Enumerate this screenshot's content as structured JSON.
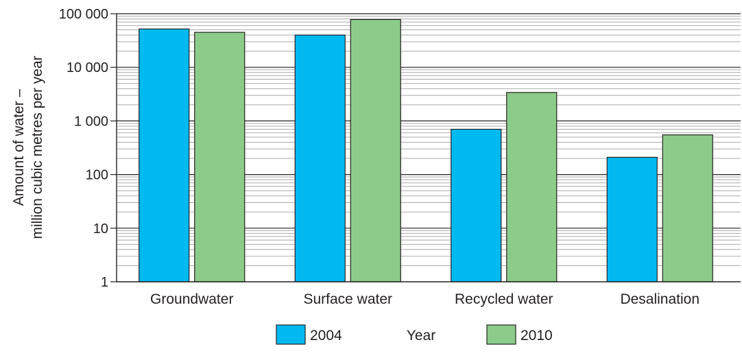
{
  "chart_data": {
    "type": "bar",
    "title": "",
    "xlabel": "",
    "ylabel_lines": [
      "Amount of water –",
      "million cubic metres per year"
    ],
    "yscale": "log",
    "ylim": [
      1,
      100000
    ],
    "yticks": [
      1,
      10,
      100,
      1000,
      10000,
      100000
    ],
    "ytick_labels": [
      "1",
      "10",
      "100",
      "1 000",
      "10 000",
      "100 000"
    ],
    "grid": true,
    "categories": [
      "Groundwater",
      "Surface water",
      "Recycled water",
      "Desalination"
    ],
    "series": [
      {
        "name": "2004",
        "color": "#00b9f1",
        "values": [
          52000,
          40000,
          700,
          210
        ]
      },
      {
        "name": "2010",
        "color": "#8dcb8b",
        "values": [
          45000,
          78000,
          3400,
          550
        ]
      }
    ],
    "legend": {
      "placement": "bottom",
      "title": "Year"
    }
  }
}
